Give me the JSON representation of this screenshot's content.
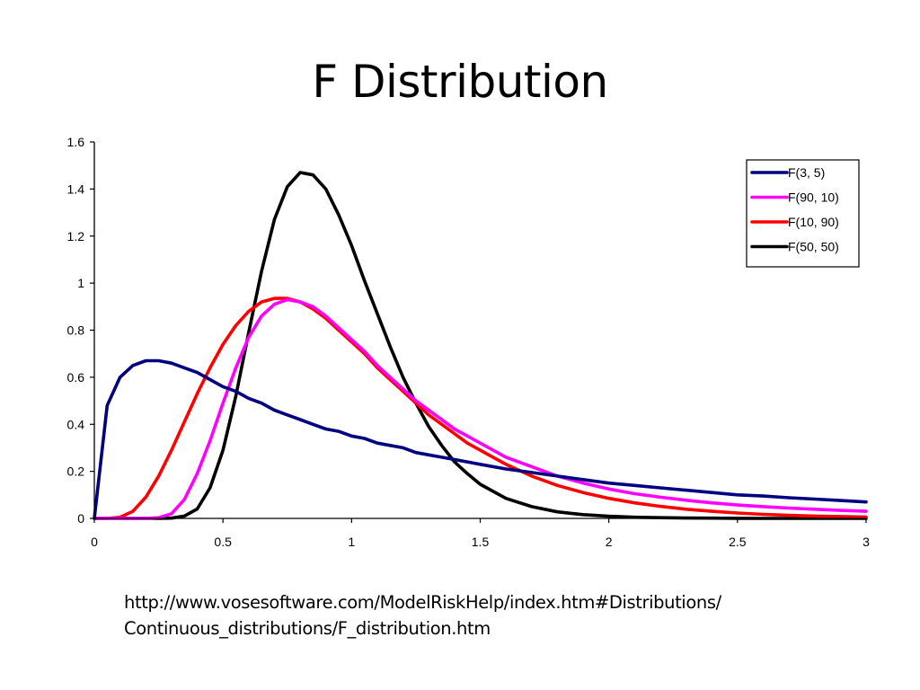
{
  "slide": {
    "title": "F Distribution",
    "caption_line1": "http://www.vosesoftware.com/ModelRiskHelp/index.htm#Distributions/",
    "caption_line2": "Continuous_distributions/F_distribution.htm"
  },
  "chart_data": {
    "type": "line",
    "title": "F Distribution",
    "xlabel": "",
    "ylabel": "",
    "xlim": [
      0,
      3
    ],
    "ylim": [
      0,
      1.6
    ],
    "x_ticks": [
      "0",
      "0.5",
      "1",
      "1.5",
      "2",
      "2.5",
      "3"
    ],
    "y_ticks": [
      "0",
      "0.2",
      "0.4",
      "0.6",
      "0.8",
      "1",
      "1.2",
      "1.4",
      "1.6"
    ],
    "grid": false,
    "legend_position": "top-right",
    "x": [
      0,
      0.05,
      0.1,
      0.15,
      0.2,
      0.25,
      0.3,
      0.35,
      0.4,
      0.45,
      0.5,
      0.55,
      0.6,
      0.65,
      0.7,
      0.75,
      0.8,
      0.85,
      0.9,
      0.95,
      1.0,
      1.05,
      1.1,
      1.15,
      1.2,
      1.25,
      1.3,
      1.35,
      1.4,
      1.45,
      1.5,
      1.6,
      1.7,
      1.8,
      1.9,
      2.0,
      2.1,
      2.2,
      2.3,
      2.4,
      2.5,
      2.6,
      2.7,
      2.8,
      2.9,
      3.0
    ],
    "series": [
      {
        "name": "F(3, 5)",
        "color": "#000080",
        "values": [
          0,
          0.48,
          0.6,
          0.65,
          0.67,
          0.67,
          0.66,
          0.64,
          0.62,
          0.59,
          0.56,
          0.54,
          0.51,
          0.49,
          0.46,
          0.44,
          0.42,
          0.4,
          0.38,
          0.37,
          0.35,
          0.34,
          0.32,
          0.31,
          0.3,
          0.28,
          0.27,
          0.26,
          0.25,
          0.24,
          0.23,
          0.21,
          0.195,
          0.18,
          0.165,
          0.15,
          0.14,
          0.13,
          0.12,
          0.11,
          0.1,
          0.095,
          0.088,
          0.082,
          0.076,
          0.07
        ]
      },
      {
        "name": "F(90, 10)",
        "color": "#FF00FF",
        "values": [
          0,
          0,
          0,
          0,
          0.0,
          0.003,
          0.02,
          0.08,
          0.19,
          0.33,
          0.49,
          0.64,
          0.77,
          0.86,
          0.91,
          0.93,
          0.92,
          0.9,
          0.86,
          0.81,
          0.76,
          0.71,
          0.65,
          0.6,
          0.55,
          0.5,
          0.46,
          0.42,
          0.38,
          0.35,
          0.32,
          0.26,
          0.22,
          0.18,
          0.15,
          0.125,
          0.105,
          0.09,
          0.077,
          0.066,
          0.057,
          0.05,
          0.044,
          0.039,
          0.034,
          0.03
        ]
      },
      {
        "name": "F(10, 90)",
        "color": "#FF0000",
        "values": [
          0,
          0,
          0.005,
          0.03,
          0.09,
          0.18,
          0.29,
          0.41,
          0.53,
          0.64,
          0.74,
          0.82,
          0.88,
          0.92,
          0.935,
          0.935,
          0.92,
          0.89,
          0.85,
          0.8,
          0.75,
          0.7,
          0.64,
          0.59,
          0.54,
          0.49,
          0.44,
          0.4,
          0.36,
          0.32,
          0.29,
          0.23,
          0.18,
          0.14,
          0.11,
          0.085,
          0.066,
          0.051,
          0.039,
          0.03,
          0.023,
          0.017,
          0.013,
          0.01,
          0.008,
          0.006
        ]
      },
      {
        "name": "F(50, 50)",
        "color": "#000000",
        "values": [
          0,
          0,
          0,
          0,
          0,
          0,
          0.001,
          0.01,
          0.04,
          0.13,
          0.29,
          0.52,
          0.79,
          1.05,
          1.27,
          1.41,
          1.47,
          1.46,
          1.4,
          1.29,
          1.16,
          1.01,
          0.87,
          0.73,
          0.6,
          0.49,
          0.39,
          0.31,
          0.24,
          0.19,
          0.145,
          0.085,
          0.05,
          0.028,
          0.016,
          0.009,
          0.005,
          0.003,
          0.0015,
          0.001,
          0.0005,
          0,
          0,
          0,
          0,
          0
        ]
      }
    ]
  },
  "legend": {
    "items": [
      {
        "label": "F(3, 5)",
        "color": "#000080"
      },
      {
        "label": "F(90, 10)",
        "color": "#FF00FF"
      },
      {
        "label": "F(10, 90)",
        "color": "#FF0000"
      },
      {
        "label": "F(50, 50)",
        "color": "#000000"
      }
    ]
  }
}
